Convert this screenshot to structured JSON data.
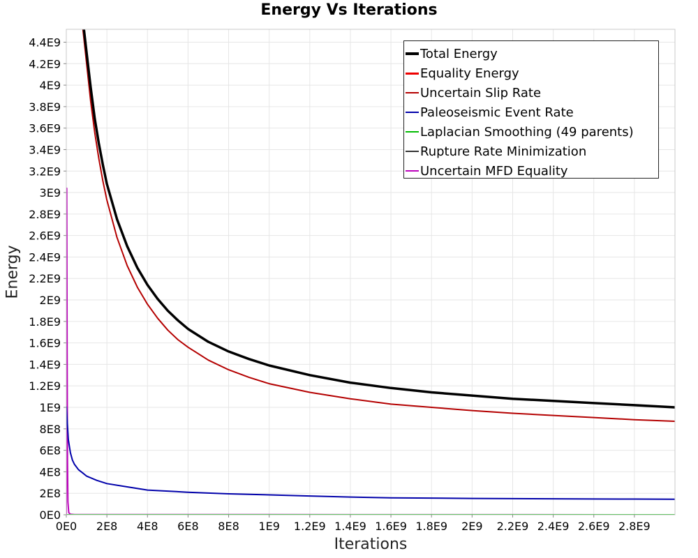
{
  "chart_data": {
    "type": "line",
    "title": "Energy Vs Iterations",
    "xlabel": "Iterations",
    "ylabel": "Energy",
    "xlim": [
      0,
      3000000000
    ],
    "ylim": [
      0,
      4520000000
    ],
    "grid": true,
    "legend_position": "top-right",
    "x_ticks": [
      {
        "value": 0,
        "label": "0E0"
      },
      {
        "value": 200000000,
        "label": "2E8"
      },
      {
        "value": 400000000,
        "label": "4E8"
      },
      {
        "value": 600000000,
        "label": "6E8"
      },
      {
        "value": 800000000,
        "label": "8E8"
      },
      {
        "value": 1000000000,
        "label": "1E9"
      },
      {
        "value": 1200000000,
        "label": "1.2E9"
      },
      {
        "value": 1400000000,
        "label": "1.4E9"
      },
      {
        "value": 1600000000,
        "label": "1.6E9"
      },
      {
        "value": 1800000000,
        "label": "1.8E9"
      },
      {
        "value": 2000000000,
        "label": "2E9"
      },
      {
        "value": 2200000000,
        "label": "2.2E9"
      },
      {
        "value": 2400000000,
        "label": "2.4E9"
      },
      {
        "value": 2600000000,
        "label": "2.6E9"
      },
      {
        "value": 2800000000,
        "label": "2.8E9"
      }
    ],
    "y_ticks": [
      {
        "value": 0,
        "label": "0E0"
      },
      {
        "value": 200000000,
        "label": "2E8"
      },
      {
        "value": 400000000,
        "label": "4E8"
      },
      {
        "value": 600000000,
        "label": "6E8"
      },
      {
        "value": 800000000,
        "label": "8E8"
      },
      {
        "value": 1000000000,
        "label": "1E9"
      },
      {
        "value": 1200000000,
        "label": "1.2E9"
      },
      {
        "value": 1400000000,
        "label": "1.4E9"
      },
      {
        "value": 1600000000,
        "label": "1.6E9"
      },
      {
        "value": 1800000000,
        "label": "1.8E9"
      },
      {
        "value": 2000000000,
        "label": "2E9"
      },
      {
        "value": 2200000000,
        "label": "2.2E9"
      },
      {
        "value": 2400000000,
        "label": "2.4E9"
      },
      {
        "value": 2600000000,
        "label": "2.6E9"
      },
      {
        "value": 2800000000,
        "label": "2.8E9"
      },
      {
        "value": 3000000000,
        "label": "3E9"
      },
      {
        "value": 3200000000,
        "label": "3.2E9"
      },
      {
        "value": 3400000000,
        "label": "3.4E9"
      },
      {
        "value": 3600000000,
        "label": "3.6E9"
      },
      {
        "value": 3800000000,
        "label": "3.8E9"
      },
      {
        "value": 4000000000,
        "label": "4E9"
      },
      {
        "value": 4200000000,
        "label": "4.2E9"
      },
      {
        "value": 4400000000,
        "label": "4.4E9"
      }
    ],
    "series": [
      {
        "name": "Total Energy",
        "color": "#000000",
        "width": 3.5,
        "x": [
          85000000,
          100000000,
          120000000,
          140000000,
          160000000,
          180000000,
          200000000,
          250000000,
          300000000,
          350000000,
          400000000,
          450000000,
          500000000,
          550000000,
          600000000,
          700000000,
          800000000,
          900000000,
          1000000000,
          1200000000,
          1400000000,
          1600000000,
          1800000000,
          2000000000,
          2200000000,
          2400000000,
          2600000000,
          2800000000,
          3000000000
        ],
        "y": [
          4550000000,
          4300000000,
          3980000000,
          3690000000,
          3460000000,
          3260000000,
          3080000000,
          2750000000,
          2500000000,
          2300000000,
          2140000000,
          2010000000,
          1900000000,
          1810000000,
          1730000000,
          1610000000,
          1520000000,
          1450000000,
          1390000000,
          1300000000,
          1230000000,
          1180000000,
          1140000000,
          1110000000,
          1080000000,
          1060000000,
          1040000000,
          1020000000,
          1000000000
        ]
      },
      {
        "name": "Equality Energy",
        "color": "#ee0000",
        "width": 2.5,
        "x": [
          85000000,
          100000000,
          120000000,
          140000000,
          160000000,
          180000000,
          200000000,
          250000000,
          300000000,
          350000000,
          400000000,
          450000000,
          500000000,
          550000000,
          600000000,
          700000000,
          800000000,
          900000000,
          1000000000,
          1200000000,
          1400000000,
          1600000000,
          1800000000,
          2000000000,
          2200000000,
          2400000000,
          2600000000,
          2800000000,
          3000000000
        ],
        "y": [
          4550000000,
          4300000000,
          3980000000,
          3690000000,
          3460000000,
          3260000000,
          3080000000,
          2750000000,
          2500000000,
          2300000000,
          2140000000,
          2010000000,
          1900000000,
          1810000000,
          1730000000,
          1610000000,
          1520000000,
          1450000000,
          1390000000,
          1300000000,
          1230000000,
          1180000000,
          1140000000,
          1110000000,
          1080000000,
          1060000000,
          1040000000,
          1020000000,
          1000000000
        ]
      },
      {
        "name": "Uncertain Slip Rate",
        "color": "#b40000",
        "width": 2,
        "x": [
          80000000,
          100000000,
          120000000,
          140000000,
          160000000,
          180000000,
          200000000,
          250000000,
          300000000,
          350000000,
          400000000,
          450000000,
          500000000,
          550000000,
          600000000,
          700000000,
          800000000,
          900000000,
          1000000000,
          1200000000,
          1400000000,
          1600000000,
          1800000000,
          2000000000,
          2200000000,
          2400000000,
          2600000000,
          2800000000,
          3000000000
        ],
        "y": [
          4550000000,
          4200000000,
          3850000000,
          3560000000,
          3320000000,
          3110000000,
          2930000000,
          2580000000,
          2320000000,
          2120000000,
          1960000000,
          1830000000,
          1720000000,
          1630000000,
          1560000000,
          1440000000,
          1350000000,
          1280000000,
          1220000000,
          1140000000,
          1080000000,
          1030000000,
          1000000000,
          970000000,
          945000000,
          925000000,
          905000000,
          885000000,
          870000000
        ]
      },
      {
        "name": "Paleoseismic Event Rate",
        "color": "#0000aa",
        "width": 2,
        "x": [
          0,
          5000000,
          10000000,
          20000000,
          30000000,
          40000000,
          60000000,
          80000000,
          100000000,
          150000000,
          200000000,
          300000000,
          400000000,
          600000000,
          800000000,
          1000000000,
          1200000000,
          1400000000,
          1600000000,
          1800000000,
          2000000000,
          2200000000,
          2400000000,
          2600000000,
          2800000000,
          3000000000
        ],
        "y": [
          1010000000,
          850000000,
          700000000,
          580000000,
          510000000,
          470000000,
          420000000,
          390000000,
          360000000,
          320000000,
          290000000,
          260000000,
          230000000,
          210000000,
          195000000,
          185000000,
          175000000,
          165000000,
          158000000,
          155000000,
          152000000,
          150000000,
          149000000,
          147000000,
          146000000,
          145000000
        ]
      },
      {
        "name": "Laplacian Smoothing (49 parents)",
        "color": "#00bb00",
        "width": 2,
        "x": [
          0,
          3000000000
        ],
        "y": [
          0,
          0
        ]
      },
      {
        "name": "Rupture Rate Minimization",
        "color": "#333333",
        "width": 2,
        "x": [
          0,
          3000000000
        ],
        "y": [
          0,
          0
        ]
      },
      {
        "name": "Uncertain MFD Equality",
        "color": "#bb00bb",
        "width": 2,
        "x": [
          0,
          2000000,
          4000000,
          6000000,
          8000000,
          12000000,
          20000000,
          40000000,
          3000000000
        ],
        "y": [
          0,
          3040000000,
          1500000000,
          500000000,
          120000000,
          20000000,
          5000000,
          2000000,
          0
        ]
      }
    ]
  }
}
